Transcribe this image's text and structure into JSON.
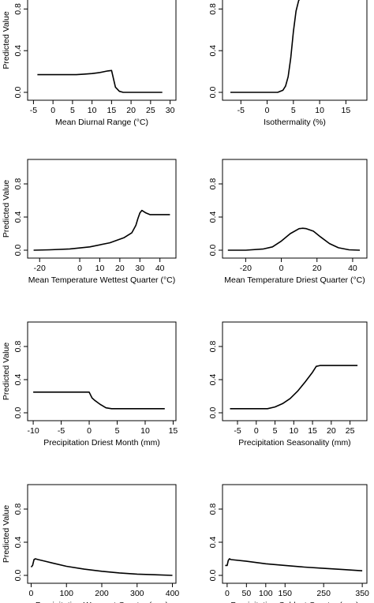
{
  "figure": {
    "ylabel": "Predicted Value"
  },
  "chart_data": [
    {
      "type": "line",
      "xlabel": "Mean Diurnal Range (°C)",
      "ylabel": "Predicted Value",
      "xlim": [
        -6.5,
        31.5
      ],
      "ylim": [
        0.0,
        1.0
      ],
      "xticks": [
        -5,
        0,
        5,
        10,
        15,
        20,
        25,
        30
      ],
      "yticks": [
        0.0,
        0.4,
        0.8
      ],
      "series": [
        {
          "x": [
            -4,
            0,
            6,
            8,
            10,
            12,
            14,
            15,
            16,
            17,
            18,
            20,
            24,
            28
          ],
          "y": [
            0.17,
            0.17,
            0.17,
            0.175,
            0.18,
            0.19,
            0.205,
            0.21,
            0.05,
            0.01,
            0.0,
            0.0,
            0.0,
            0.0
          ]
        }
      ]
    },
    {
      "type": "line",
      "xlabel": "Isothermality (%)",
      "ylabel": "",
      "xlim": [
        -8.5,
        19
      ],
      "ylim": [
        0.0,
        1.0
      ],
      "xticks": [
        -5,
        0,
        5,
        10,
        15
      ],
      "yticks": [
        0.0,
        0.4,
        0.8
      ],
      "series": [
        {
          "x": [
            -7,
            0,
            2,
            3,
            3.5,
            4,
            4.5,
            5,
            5.5,
            6,
            6.5,
            7,
            10,
            17
          ],
          "y": [
            0.0,
            0.0,
            0.0,
            0.02,
            0.06,
            0.15,
            0.33,
            0.58,
            0.78,
            0.88,
            0.92,
            0.92,
            0.92,
            0.92
          ]
        }
      ]
    },
    {
      "type": "line",
      "xlabel": "Mean Temperature Wettest Quarter (°C)",
      "ylabel": "Predicted Value",
      "xlim": [
        -26,
        48
      ],
      "ylim": [
        0.0,
        1.0
      ],
      "xticks": [
        -20,
        0,
        10,
        20,
        30,
        40
      ],
      "yticks": [
        0.0,
        0.4,
        0.8
      ],
      "series": [
        {
          "x": [
            -23,
            -15,
            -5,
            5,
            15,
            22,
            26,
            28,
            29,
            30,
            31,
            33,
            35,
            45
          ],
          "y": [
            0.0,
            0.005,
            0.015,
            0.04,
            0.09,
            0.15,
            0.21,
            0.3,
            0.38,
            0.45,
            0.48,
            0.45,
            0.43,
            0.43
          ]
        }
      ]
    },
    {
      "type": "line",
      "xlabel": "Mean Temperature Driest Quarter (°C)",
      "ylabel": "",
      "xlim": [
        -33,
        48
      ],
      "ylim": [
        0.0,
        1.0
      ],
      "xticks": [
        -20,
        0,
        20,
        40
      ],
      "yticks": [
        0.0,
        0.4,
        0.8
      ],
      "series": [
        {
          "x": [
            -30,
            -20,
            -10,
            -5,
            0,
            5,
            10,
            12,
            14,
            18,
            22,
            27,
            32,
            38,
            44
          ],
          "y": [
            0.0,
            0.0,
            0.015,
            0.04,
            0.11,
            0.2,
            0.26,
            0.265,
            0.26,
            0.23,
            0.16,
            0.08,
            0.03,
            0.005,
            0.0
          ]
        }
      ]
    },
    {
      "type": "line",
      "xlabel": "Precipitation Driest Month (mm)",
      "ylabel": "Predicted Value",
      "xlim": [
        -11,
        15.5
      ],
      "ylim": [
        0.0,
        1.0
      ],
      "xticks": [
        -10,
        -5,
        0,
        5,
        10,
        15
      ],
      "yticks": [
        0.0,
        0.4,
        0.8
      ],
      "series": [
        {
          "x": [
            -10,
            -5,
            0,
            0.5,
            1,
            2,
            3,
            4,
            8,
            13.5
          ],
          "y": [
            0.25,
            0.25,
            0.25,
            0.18,
            0.15,
            0.1,
            0.06,
            0.05,
            0.05,
            0.05
          ]
        }
      ]
    },
    {
      "type": "line",
      "xlabel": "Precipitation Seasonality (mm)",
      "ylabel": "",
      "xlim": [
        -9,
        29.5
      ],
      "ylim": [
        0.0,
        1.0
      ],
      "xticks": [
        -5,
        0,
        5,
        10,
        15,
        20,
        25
      ],
      "yticks": [
        0.0,
        0.4,
        0.8
      ],
      "series": [
        {
          "x": [
            -7,
            0,
            3,
            5,
            7,
            9,
            11,
            13,
            15,
            16,
            17,
            20,
            27
          ],
          "y": [
            0.05,
            0.05,
            0.05,
            0.07,
            0.11,
            0.17,
            0.26,
            0.37,
            0.49,
            0.56,
            0.57,
            0.57,
            0.57
          ]
        }
      ]
    },
    {
      "type": "line",
      "xlabel": "Precipitation Warmest Quarter (mm)",
      "ylabel": "Predicted Value",
      "xlim": [
        -10,
        410
      ],
      "ylim": [
        0.0,
        1.0
      ],
      "xticks": [
        0,
        100,
        200,
        300,
        400
      ],
      "yticks": [
        0.0,
        0.4,
        0.8
      ],
      "series": [
        {
          "x": [
            0,
            4,
            8,
            12,
            20,
            40,
            60,
            100,
            150,
            200,
            250,
            300,
            350,
            400
          ],
          "y": [
            0.1,
            0.12,
            0.19,
            0.2,
            0.19,
            0.17,
            0.15,
            0.11,
            0.075,
            0.05,
            0.03,
            0.015,
            0.008,
            0.0
          ]
        }
      ]
    },
    {
      "type": "line",
      "xlabel": "Precipitation Coldest Quarter (mm)",
      "ylabel": "",
      "xlim": [
        -12,
        362
      ],
      "ylim": [
        0.0,
        1.0
      ],
      "xticks": [
        0,
        50,
        100,
        150,
        250,
        350
      ],
      "yticks": [
        0.0,
        0.4,
        0.8
      ],
      "series": [
        {
          "x": [
            -5,
            0,
            3,
            6,
            10,
            50,
            100,
            150,
            200,
            250,
            300,
            350
          ],
          "y": [
            0.12,
            0.12,
            0.18,
            0.2,
            0.19,
            0.17,
            0.14,
            0.12,
            0.1,
            0.085,
            0.07,
            0.055
          ]
        }
      ]
    }
  ]
}
